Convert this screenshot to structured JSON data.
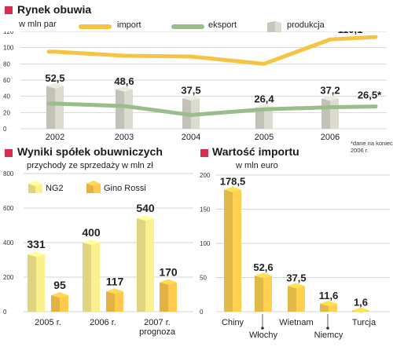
{
  "colors": {
    "accent": "#d62e4e",
    "import": "#f6c445",
    "export": "#9bbd8c",
    "production": "#d3d3c8",
    "ng2": "#f2e68a",
    "gino_rossi": "#f6c24b",
    "import_value": "#f5c94c",
    "grid": "#c8c8c8"
  },
  "chart_data": [
    {
      "type": "line",
      "title": "Rynek obuwia",
      "subtitle": "w mln par",
      "x": [
        "2002",
        "2003",
        "2004",
        "2005",
        "2006"
      ],
      "ylim": [
        0,
        120
      ],
      "yticks": [
        "0",
        "20",
        "40",
        "60",
        "80",
        "100",
        "120"
      ],
      "grid": true,
      "legend": "top",
      "series": [
        {
          "name": "import",
          "type": "line",
          "values": [
            95,
            90,
            89,
            80,
            110.1
          ]
        },
        {
          "name": "eksport",
          "type": "line",
          "values": [
            31,
            28,
            17,
            24,
            26.5
          ]
        },
        {
          "name": "produkcja",
          "type": "bar",
          "values": [
            52.5,
            48.6,
            37.5,
            26.4,
            37.2
          ]
        }
      ],
      "annotations": [
        "110,1*",
        "26,5*"
      ],
      "value_labels": [
        "52,5",
        "48,6",
        "37,5",
        "26,4",
        "37,2"
      ],
      "note": "*dane na koniec 2006 r."
    },
    {
      "type": "bar",
      "title": "Wyniki spółek obuwniczych",
      "subtitle": "przychody ze sprzedaży w mln zł",
      "categories": [
        "2005 r.",
        "2006 r.",
        "2007 r."
      ],
      "category_sub": [
        "",
        "",
        "prognoza"
      ],
      "ylim": [
        0,
        800
      ],
      "yticks": [
        "0",
        "200",
        "400",
        "600",
        "800"
      ],
      "grid": true,
      "legend": "top-left",
      "series": [
        {
          "name": "NG2",
          "values": [
            331,
            400,
            540
          ]
        },
        {
          "name": "Gino Rossi",
          "values": [
            95,
            117,
            170
          ]
        }
      ],
      "value_labels": [
        [
          "331",
          "400",
          "540"
        ],
        [
          "95",
          "117",
          "170"
        ]
      ]
    },
    {
      "type": "bar",
      "title": "Wartość importu",
      "subtitle": "w mln euro",
      "categories": [
        "Chiny",
        "Włochy",
        "Wietnam",
        "Niemcy",
        "Turcja"
      ],
      "values": [
        178.5,
        52.6,
        37.5,
        11.6,
        1.6
      ],
      "value_labels": [
        "178,5",
        "52,6",
        "37,5",
        "11,6",
        "1,6"
      ],
      "ylim": [
        0,
        200
      ],
      "yticks": [
        "0",
        "50",
        "100",
        "150",
        "200"
      ],
      "grid": true
    }
  ]
}
